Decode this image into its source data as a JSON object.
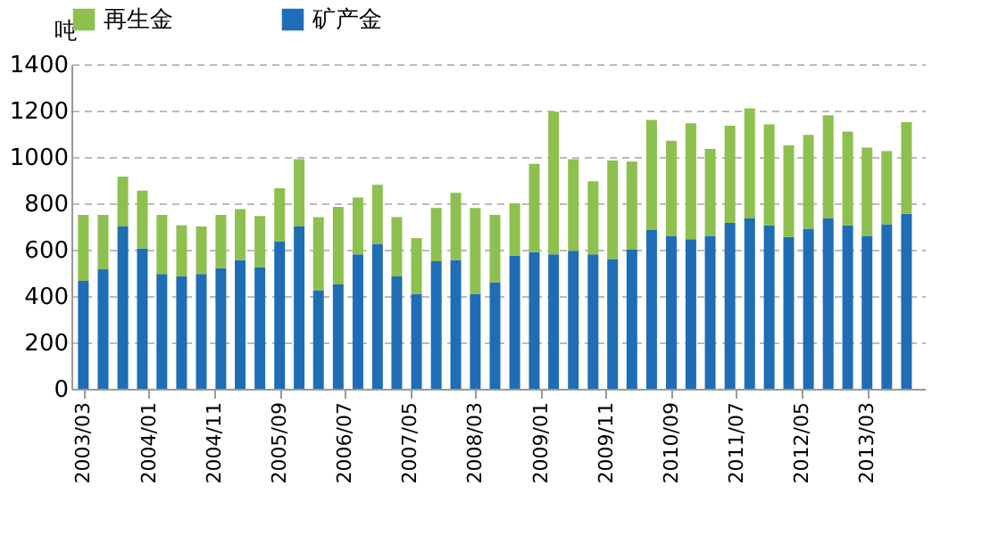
{
  "chart_data": {
    "type": "bar",
    "stacked": true,
    "ylabel": "吨",
    "legend": "top",
    "grid": "y",
    "x": [
      "2003-03",
      "2003-06",
      "2003-09",
      "2003-12",
      "2004-03",
      "2004-06",
      "2004-09",
      "2004-12",
      "2005-03",
      "2005-06",
      "2005-09",
      "2005-12",
      "2006-03",
      "2006-06",
      "2006-09",
      "2006-12",
      "2007-03",
      "2007-06",
      "2007-09",
      "2007-12",
      "2008-03",
      "2008-06",
      "2008-09",
      "2008-12",
      "2009-03",
      "2009-06",
      "2009-09",
      "2009-12",
      "2010-03",
      "2010-06",
      "2010-09",
      "2010-12",
      "2011-03",
      "2011-06",
      "2011-09",
      "2011-12",
      "2012-03",
      "2012-06",
      "2012-09",
      "2012-12",
      "2013-03",
      "2013-06",
      "2013-09"
    ],
    "series": [
      {
        "name": "矿产金",
        "color": "#1f6db5",
        "values": [
          465,
          515,
          700,
          605,
          495,
          485,
          495,
          520,
          555,
          525,
          635,
          700,
          425,
          450,
          580,
          625,
          485,
          410,
          550,
          555,
          410,
          460,
          575,
          590,
          580,
          595,
          580,
          560,
          600,
          685,
          660,
          645,
          660,
          715,
          735,
          705,
          655,
          690,
          735,
          705,
          660,
          710,
          755
        ]
      },
      {
        "name": "再生金",
        "color": "#8dc04f",
        "values": [
          285,
          235,
          215,
          250,
          255,
          220,
          205,
          230,
          220,
          220,
          230,
          290,
          315,
          335,
          245,
          255,
          255,
          240,
          230,
          290,
          370,
          290,
          225,
          380,
          615,
          395,
          315,
          425,
          380,
          475,
          410,
          500,
          375,
          420,
          475,
          435,
          395,
          405,
          445,
          405,
          380,
          315,
          395
        ]
      }
    ],
    "ylim": [
      0,
      1400
    ],
    "yticks": [
      0,
      200,
      400,
      600,
      800,
      1000,
      1200,
      1400
    ],
    "xlim": [
      "2003-02-15",
      "2013-10-15"
    ],
    "xticks": [
      {
        "value": "2003-03",
        "label": "2003/03"
      },
      {
        "value": "2004-01",
        "label": "2004/01"
      },
      {
        "value": "2004-11",
        "label": "2004/11"
      },
      {
        "value": "2005-09",
        "label": "2005/09"
      },
      {
        "value": "2006-07",
        "label": "2006/07"
      },
      {
        "value": "2007-05",
        "label": "2007/05"
      },
      {
        "value": "2008-03",
        "label": "2008/03"
      },
      {
        "value": "2009-01",
        "label": "2009/01"
      },
      {
        "value": "2009-11",
        "label": "2009/11"
      },
      {
        "value": "2010-09",
        "label": "2010/09"
      },
      {
        "value": "2011-07",
        "label": "2011/07"
      },
      {
        "value": "2012-05",
        "label": "2012/05"
      },
      {
        "value": "2013-03",
        "label": "2013/03"
      }
    ]
  }
}
